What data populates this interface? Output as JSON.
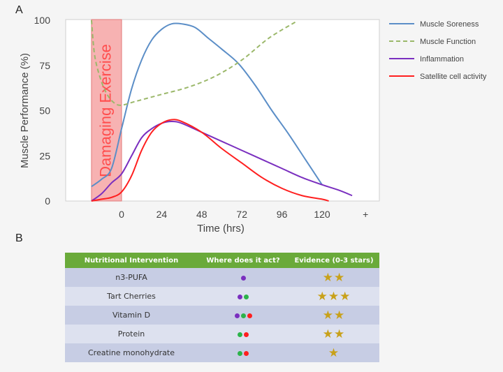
{
  "panel_labels": {
    "a": "A",
    "b": "B"
  },
  "chart_data": {
    "type": "line",
    "ylabel": "Muscle Performance (%)",
    "xlabel": "Time (hrs)",
    "ylim": [
      0,
      100
    ],
    "xlim": [
      -18,
      150
    ],
    "y_ticks": [
      "0",
      "25",
      "50",
      "75",
      "100"
    ],
    "x_ticks": [
      "0",
      "24",
      "48",
      "72",
      "96",
      "120",
      "+"
    ],
    "grid": false,
    "legend_position": "right",
    "shaded_region": {
      "label": "Damaging Exercise",
      "x_start": -18,
      "x_end": 0,
      "color": "#f7b2b2",
      "text_color": "#ff4d4d"
    },
    "series": [
      {
        "name": "Muscle Soreness",
        "color": "#5b8ec7",
        "style": "solid",
        "points": [
          [
            -18,
            8
          ],
          [
            -12,
            12
          ],
          [
            -6,
            18
          ],
          [
            0,
            40
          ],
          [
            6,
            62
          ],
          [
            12,
            78
          ],
          [
            18,
            89
          ],
          [
            24,
            95
          ],
          [
            30,
            98
          ],
          [
            36,
            98
          ],
          [
            44,
            96
          ],
          [
            52,
            90
          ],
          [
            60,
            84
          ],
          [
            70,
            76
          ],
          [
            80,
            64
          ],
          [
            90,
            50
          ],
          [
            100,
            37
          ],
          [
            110,
            23
          ],
          [
            120,
            9
          ]
        ]
      },
      {
        "name": "Muscle Function",
        "color": "#9bb86a",
        "style": "dashed",
        "points": [
          [
            -18,
            100
          ],
          [
            -16,
            80
          ],
          [
            -12,
            66
          ],
          [
            -8,
            58
          ],
          [
            -4,
            54
          ],
          [
            0,
            53
          ],
          [
            8,
            55
          ],
          [
            16,
            57
          ],
          [
            24,
            59
          ],
          [
            40,
            63
          ],
          [
            56,
            69
          ],
          [
            72,
            78
          ],
          [
            88,
            90
          ],
          [
            104,
            99
          ]
        ]
      },
      {
        "name": "Inflammation",
        "color": "#7a2fbf",
        "style": "solid",
        "points": [
          [
            -18,
            0
          ],
          [
            -12,
            4
          ],
          [
            -6,
            10
          ],
          [
            0,
            15
          ],
          [
            6,
            25
          ],
          [
            12,
            35
          ],
          [
            18,
            40
          ],
          [
            24,
            43
          ],
          [
            30,
            44
          ],
          [
            36,
            43
          ],
          [
            48,
            38
          ],
          [
            60,
            33
          ],
          [
            72,
            28
          ],
          [
            84,
            23
          ],
          [
            96,
            18
          ],
          [
            108,
            13
          ],
          [
            120,
            9
          ],
          [
            130,
            6
          ],
          [
            138,
            3
          ]
        ]
      },
      {
        "name": "Satellite cell activity",
        "color": "#ff1f1f",
        "style": "solid",
        "points": [
          [
            -18,
            0
          ],
          [
            -12,
            1
          ],
          [
            -6,
            2
          ],
          [
            0,
            5
          ],
          [
            6,
            14
          ],
          [
            12,
            28
          ],
          [
            18,
            38
          ],
          [
            24,
            43
          ],
          [
            30,
            45
          ],
          [
            36,
            44
          ],
          [
            48,
            38
          ],
          [
            60,
            29
          ],
          [
            72,
            21
          ],
          [
            84,
            13
          ],
          [
            96,
            7
          ],
          [
            108,
            3
          ],
          [
            120,
            1
          ],
          [
            124,
            0
          ]
        ]
      }
    ]
  },
  "table": {
    "headers": [
      "Nutritional Intervention",
      "Where does it act?",
      "Evidence (0-3 stars)"
    ],
    "rows": [
      {
        "name": "n3-PUFA",
        "dots": [
          "#7a2fbf"
        ],
        "stars": 2
      },
      {
        "name": "Tart Cherries",
        "dots": [
          "#7a2fbf",
          "#2cb34a"
        ],
        "stars": 3
      },
      {
        "name": "Vitamin D",
        "dots": [
          "#7a2fbf",
          "#2cb34a",
          "#ff1f1f"
        ],
        "stars": 2
      },
      {
        "name": "Protein",
        "dots": [
          "#2cb34a",
          "#ff1f1f"
        ],
        "stars": 2
      },
      {
        "name": "Creatine monohydrate",
        "dots": [
          "#2cb34a",
          "#ff1f1f"
        ],
        "stars": 1
      }
    ]
  }
}
